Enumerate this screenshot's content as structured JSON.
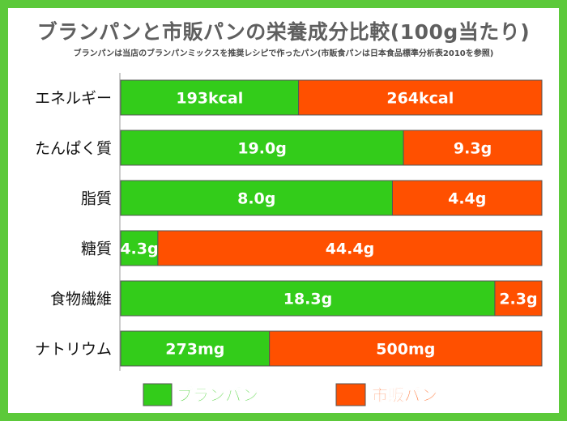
{
  "title": "ブランパンと市販パンの栄養成分比較(100g当たり)",
  "subtitle": "ブランパンは当店のブランパンミックスを推奨レシピで作ったパン(市販食パンは日本食品標準分析表2010を参照)",
  "colors": {
    "bran": "#33cc1a",
    "commercial": "#ff5000",
    "frame": "#5cc93a"
  },
  "chart_data": {
    "type": "bar",
    "orientation": "horizontal",
    "stacked": "percent",
    "categories": [
      "エネルギー",
      "たんぱく質",
      "脂質",
      "糖質",
      "食物繊維",
      "ナトリウム"
    ],
    "series": [
      {
        "name": "ブランパン",
        "values": [
          193,
          19.0,
          8.0,
          4.3,
          18.3,
          273
        ],
        "labels": [
          "193kcal",
          "19.0g",
          "8.0g",
          "4.3g",
          "18.3g",
          "273mg"
        ]
      },
      {
        "name": "市販パン",
        "values": [
          264,
          9.3,
          4.4,
          44.4,
          2.3,
          500
        ],
        "labels": [
          "264kcal",
          "9.3g",
          "4.4g",
          "44.4g",
          "2.3g",
          "500mg"
        ]
      }
    ],
    "legend": "bottom"
  }
}
